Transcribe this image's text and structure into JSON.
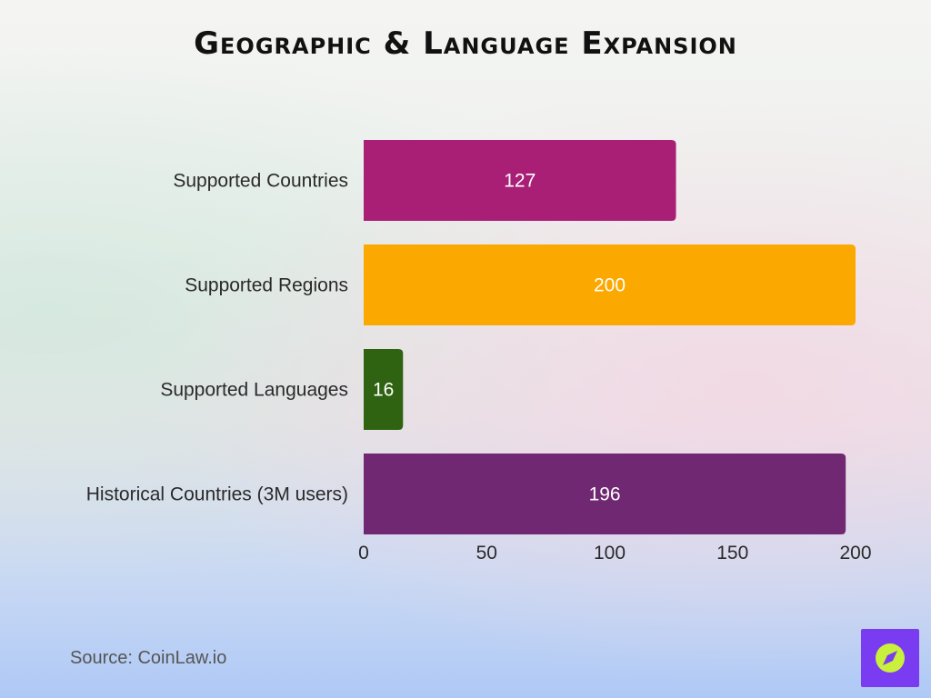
{
  "header": {
    "title": "Geographic & Language Expansion"
  },
  "footer": {
    "source": "Source: CoinLaw.io"
  },
  "logo": {
    "icon": "compass-icon",
    "background": "#7a3cf0",
    "accent": "#c8f03c"
  },
  "chart_data": {
    "type": "bar",
    "orientation": "horizontal",
    "title": "Geographic & Language Expansion",
    "xlabel": "",
    "ylabel": "",
    "categories": [
      "Supported Countries",
      "Supported Regions",
      "Supported Languages",
      "Historical Countries (3M users)"
    ],
    "values": [
      127,
      200,
      16,
      196
    ],
    "colors": [
      "#a91f76",
      "#fba800",
      "#2f6311",
      "#6f2871"
    ],
    "xlim": [
      0,
      200
    ],
    "xticks": [
      0,
      50,
      100,
      150,
      200
    ],
    "grid": false,
    "legend": "none"
  }
}
